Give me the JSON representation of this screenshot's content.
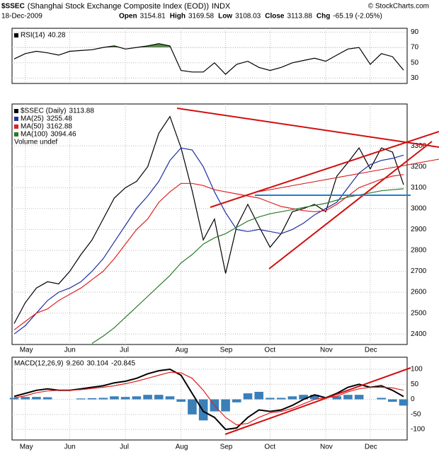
{
  "header": {
    "symbol": "$SSEC",
    "name": "(Shanghai Stock Exchange Composite Index (EOD))",
    "exchange": "INDX",
    "source": "© StockCharts.com",
    "date": "18-Dec-2009",
    "quote": [
      {
        "label": "Open",
        "value": 3154.81
      },
      {
        "label": "High",
        "value": 3169.58
      },
      {
        "label": "Low",
        "value": 3108.03
      },
      {
        "label": "Close",
        "value": 3113.88
      },
      {
        "label": "Chg",
        "value": "-65.19 (-2.05%)"
      }
    ]
  },
  "chart_data": [
    {
      "type": "line",
      "ylim": [
        23,
        95
      ],
      "yticks": [
        30,
        50,
        70,
        90
      ],
      "fill_color": "#5c8a4e",
      "series": [
        {
          "name": "RSI(14)",
          "color": "#000000",
          "values": [
            55,
            62,
            65,
            63,
            60,
            65,
            66,
            67,
            70,
            72,
            68,
            70,
            72,
            75,
            72,
            40,
            38,
            38,
            50,
            35,
            48,
            52,
            44,
            40,
            44,
            50,
            53,
            56,
            52,
            60,
            68,
            70,
            48,
            62,
            58,
            40.28
          ]
        }
      ]
    },
    {
      "type": "line",
      "ylim": [
        2350,
        3500
      ],
      "yticks": [
        2400,
        2500,
        2600,
        2700,
        2800,
        2900,
        3000,
        3100,
        3200,
        3300
      ],
      "note": "Volume undef",
      "categories": [
        null,
        "May",
        null,
        null,
        null,
        "Jun",
        null,
        null,
        null,
        null,
        "Jul",
        null,
        null,
        null,
        null,
        "Aug",
        null,
        null,
        null,
        "Sep",
        null,
        null,
        null,
        "Oct",
        null,
        null,
        null,
        null,
        "Nov",
        null,
        null,
        null,
        "Dec",
        null,
        null,
        null
      ],
      "series": [
        {
          "name": "$SSEC (Daily)",
          "color": "#000000",
          "values": [
            2450,
            2550,
            2620,
            2650,
            2640,
            2700,
            2780,
            2850,
            2950,
            3050,
            3100,
            3130,
            3200,
            3360,
            3440,
            3290,
            3085,
            2850,
            2950,
            2690,
            2915,
            3020,
            2915,
            2815,
            2880,
            2985,
            3000,
            3020,
            2985,
            3155,
            3220,
            3290,
            3190,
            3290,
            3270,
            3113.88
          ]
        },
        {
          "name": "MA(25)",
          "color": "#1f2fa0",
          "values": [
            2400,
            2440,
            2500,
            2560,
            2600,
            2620,
            2650,
            2700,
            2760,
            2840,
            2920,
            3000,
            3060,
            3130,
            3230,
            3290,
            3280,
            3200,
            3080,
            2980,
            2900,
            2890,
            2900,
            2890,
            2880,
            2900,
            2930,
            2970,
            3000,
            3030,
            3100,
            3170,
            3210,
            3230,
            3240,
            3255.48
          ]
        },
        {
          "name": "MA(50)",
          "color": "#e02020",
          "values": [
            2420,
            2460,
            2500,
            2520,
            2560,
            2590,
            2620,
            2660,
            2700,
            2760,
            2830,
            2900,
            2950,
            3030,
            3080,
            3120,
            3120,
            3110,
            3090,
            3080,
            3070,
            3060,
            3050,
            3030,
            3010,
            3000,
            2990,
            2985,
            2990,
            3020,
            3060,
            3100,
            3120,
            3140,
            3155,
            3162.88
          ]
        },
        {
          "name": "MA(100)",
          "color": "#2a7a2a",
          "values": [
            null,
            null,
            null,
            null,
            null,
            null,
            null,
            2355,
            2390,
            2430,
            2480,
            2530,
            2580,
            2630,
            2680,
            2740,
            2780,
            2830,
            2860,
            2880,
            2910,
            2940,
            2960,
            2975,
            2985,
            2995,
            3005,
            3015,
            3025,
            3040,
            3055,
            3065,
            3075,
            3085,
            3090,
            3094.46
          ]
        }
      ]
    },
    {
      "type": "combo",
      "label": "MACD(12,26,9)",
      "ylim": [
        -135,
        140
      ],
      "yticks": [
        -100,
        -50,
        0,
        50,
        100
      ],
      "series": [
        {
          "type": "bar",
          "color": "#3a7fb8",
          "last_label": "-20.845",
          "values": [
            5,
            8,
            8,
            7,
            0,
            0,
            3,
            4,
            5,
            10,
            8,
            10,
            15,
            15,
            10,
            -8,
            -50,
            -70,
            -40,
            -40,
            -10,
            20,
            25,
            5,
            5,
            10,
            15,
            15,
            0,
            10,
            15,
            15,
            0,
            5,
            -8,
            -20.845
          ]
        },
        {
          "type": "line",
          "color": "#000000",
          "last_label": "9.260",
          "values": [
            10,
            20,
            30,
            35,
            30,
            30,
            35,
            40,
            45,
            55,
            60,
            70,
            85,
            95,
            100,
            80,
            20,
            -40,
            -60,
            -100,
            -95,
            -60,
            -35,
            -40,
            -35,
            -20,
            0,
            15,
            5,
            20,
            40,
            50,
            40,
            45,
            30,
            9.26
          ]
        },
        {
          "type": "line",
          "color": "#e02020",
          "last_label": "30.104",
          "values": [
            5,
            12,
            22,
            28,
            30,
            30,
            32,
            36,
            40,
            45,
            52,
            60,
            70,
            80,
            90,
            88,
            70,
            30,
            -20,
            -60,
            -85,
            -80,
            -60,
            -45,
            -40,
            -30,
            -15,
            0,
            5,
            10,
            25,
            35,
            40,
            40,
            38,
            30.104
          ]
        }
      ]
    }
  ]
}
